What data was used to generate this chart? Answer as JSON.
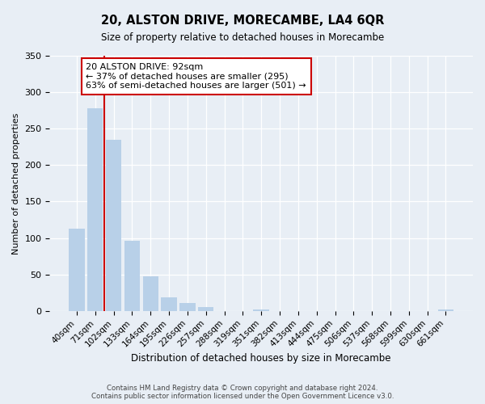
{
  "title": "20, ALSTON DRIVE, MORECAMBE, LA4 6QR",
  "subtitle": "Size of property relative to detached houses in Morecambe",
  "xlabel": "Distribution of detached houses by size in Morecambe",
  "ylabel": "Number of detached properties",
  "footer_line1": "Contains HM Land Registry data © Crown copyright and database right 2024.",
  "footer_line2": "Contains public sector information licensed under the Open Government Licence v3.0.",
  "bar_labels": [
    "40sqm",
    "71sqm",
    "102sqm",
    "133sqm",
    "164sqm",
    "195sqm",
    "226sqm",
    "257sqm",
    "288sqm",
    "319sqm",
    "351sqm",
    "382sqm",
    "413sqm",
    "444sqm",
    "475sqm",
    "506sqm",
    "537sqm",
    "568sqm",
    "599sqm",
    "630sqm",
    "661sqm"
  ],
  "bar_values": [
    113,
    278,
    235,
    96,
    48,
    19,
    11,
    5,
    0,
    0,
    2,
    0,
    0,
    0,
    0,
    0,
    0,
    0,
    0,
    0,
    2
  ],
  "bar_color": "#b8d0e8",
  "vline_color": "#cc0000",
  "ylim": [
    0,
    350
  ],
  "yticks": [
    0,
    50,
    100,
    150,
    200,
    250,
    300,
    350
  ],
  "annotation_line1": "20 ALSTON DRIVE: 92sqm",
  "annotation_line2": "← 37% of detached houses are smaller (295)",
  "annotation_line3": "63% of semi-detached houses are larger (501) →",
  "annotation_box_color": "#ffffff",
  "annotation_box_edge": "#cc0000",
  "bg_color": "#e8eef5"
}
